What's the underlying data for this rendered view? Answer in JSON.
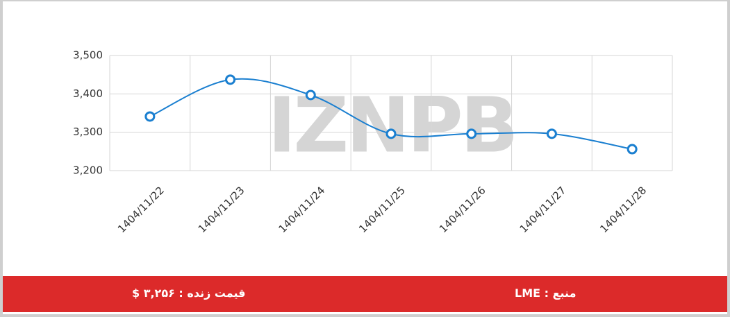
{
  "chart_data": {
    "type": "line",
    "categories": [
      "1404/11/22",
      "1404/11/23",
      "1404/11/24",
      "1404/11/25",
      "1404/11/26",
      "1404/11/27",
      "1404/11/28"
    ],
    "values": [
      3341,
      3437,
      3397,
      3296,
      3296,
      3296,
      3256
    ],
    "color": "#1a7fd0",
    "ylim": [
      3200,
      3500
    ],
    "yticks": [
      {
        "value": 3200,
        "label": "3,200"
      },
      {
        "value": 3300,
        "label": "3,300"
      },
      {
        "value": 3400,
        "label": "3,400"
      },
      {
        "value": 3500,
        "label": "3,500"
      }
    ],
    "grid": true,
    "watermark": "IZNPB"
  },
  "footer": {
    "price": "قیمت زنده : ۳,۲۵۶ $",
    "source": "منبع : LME"
  }
}
